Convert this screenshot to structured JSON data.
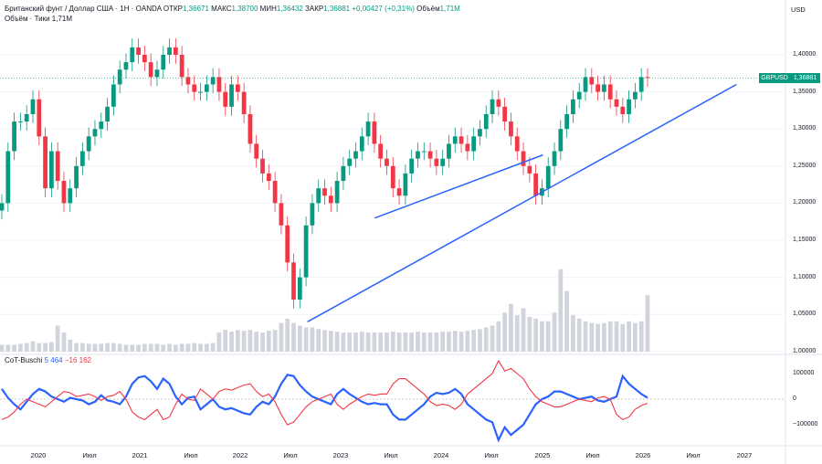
{
  "header": {
    "symbol_line": "Британский фунт / Доллар США · 1Н · OANDA",
    "open_label": "ОТКР",
    "open_value": "1,36671",
    "high_label": "МАКС",
    "high_value": "1,38700",
    "low_label": "МИН",
    "low_value": "1,36432",
    "close_label": "ЗАКР",
    "close_value": "1,36881",
    "change": "+0,00427 (+0,31%)",
    "volume_label": "Объём",
    "volume_value": "1,71M",
    "volume_line": "Объём · Тики  1,71M"
  },
  "axis": {
    "currency": "USD",
    "price_tag_symbol": "GBPUSD",
    "price_tag_value": "1,36881"
  },
  "chart_data": [
    {
      "type": "candlestick",
      "title": "GBPUSD",
      "ylim": [
        1.0,
        1.43
      ],
      "y_ticks": [
        "1,40000",
        "1,35000",
        "1,30000",
        "1,25000",
        "1,20000",
        "1,15000",
        "1,10000",
        "1,05000",
        "1,00000"
      ],
      "x_ticks": [
        "2020",
        "Июл",
        "2021",
        "Июл",
        "2022",
        "Июл",
        "2023",
        "Июл",
        "2024",
        "Июл",
        "2025",
        "Июл",
        "2026",
        "Июл",
        "2027"
      ],
      "closes": [
        1.2,
        1.27,
        1.31,
        1.31,
        1.32,
        1.34,
        1.29,
        1.22,
        1.27,
        1.23,
        1.2,
        1.22,
        1.25,
        1.27,
        1.29,
        1.3,
        1.31,
        1.33,
        1.36,
        1.38,
        1.39,
        1.41,
        1.4,
        1.39,
        1.37,
        1.38,
        1.4,
        1.41,
        1.4,
        1.37,
        1.36,
        1.35,
        1.35,
        1.36,
        1.37,
        1.35,
        1.33,
        1.36,
        1.35,
        1.32,
        1.28,
        1.26,
        1.24,
        1.23,
        1.2,
        1.17,
        1.12,
        1.07,
        1.1,
        1.17,
        1.2,
        1.22,
        1.21,
        1.2,
        1.23,
        1.25,
        1.26,
        1.27,
        1.29,
        1.31,
        1.28,
        1.26,
        1.25,
        1.22,
        1.21,
        1.24,
        1.26,
        1.27,
        1.27,
        1.26,
        1.25,
        1.26,
        1.28,
        1.29,
        1.28,
        1.27,
        1.29,
        1.3,
        1.32,
        1.34,
        1.33,
        1.31,
        1.29,
        1.27,
        1.25,
        1.24,
        1.21,
        1.22,
        1.25,
        1.27,
        1.3,
        1.32,
        1.34,
        1.35,
        1.37,
        1.36,
        1.35,
        1.36,
        1.34,
        1.33,
        1.32,
        1.34,
        1.35,
        1.37,
        1.3688
      ],
      "volume_ylim": [
        0,
        1.0
      ],
      "volume_relative": [
        0.08,
        0.08,
        0.08,
        0.09,
        0.1,
        0.12,
        0.1,
        0.1,
        0.11,
        0.3,
        0.22,
        0.14,
        0.1,
        0.1,
        0.09,
        0.09,
        0.09,
        0.1,
        0.1,
        0.09,
        0.08,
        0.08,
        0.08,
        0.09,
        0.09,
        0.09,
        0.08,
        0.09,
        0.08,
        0.09,
        0.09,
        0.1,
        0.09,
        0.09,
        0.1,
        0.22,
        0.25,
        0.23,
        0.25,
        0.24,
        0.25,
        0.23,
        0.22,
        0.24,
        0.25,
        0.33,
        0.38,
        0.33,
        0.3,
        0.28,
        0.28,
        0.26,
        0.25,
        0.24,
        0.23,
        0.22,
        0.22,
        0.22,
        0.23,
        0.22,
        0.22,
        0.22,
        0.22,
        0.23,
        0.22,
        0.22,
        0.22,
        0.23,
        0.22,
        0.22,
        0.22,
        0.23,
        0.23,
        0.24,
        0.23,
        0.24,
        0.25,
        0.26,
        0.28,
        0.3,
        0.35,
        0.45,
        0.55,
        0.42,
        0.5,
        0.4,
        0.38,
        0.35,
        0.35,
        0.45,
        0.95,
        0.7,
        0.42,
        0.38,
        0.35,
        0.33,
        0.32,
        0.33,
        0.35,
        0.35,
        0.32,
        0.35,
        0.33,
        0.35,
        0.65
      ],
      "trendlines": [
        {
          "from": [
            "2023-05",
            1.18
          ],
          "to": [
            "2025-01",
            1.265
          ]
        },
        {
          "from": [
            "2022-09",
            1.04
          ],
          "to": [
            "2026-12",
            1.36
          ]
        }
      ]
    },
    {
      "type": "line",
      "title": "CoT-Buschi",
      "values_shown": [
        "5 464",
        "−16 162"
      ],
      "ylim": [
        -180000,
        140000
      ],
      "y_ticks": [
        "100000",
        "0",
        "−100000"
      ],
      "series": [
        {
          "name": "blue",
          "color": "#2962ff",
          "values": [
            40000,
            5000,
            -20000,
            -40000,
            -10000,
            20000,
            40000,
            30000,
            10000,
            0,
            -10000,
            5000,
            0,
            -5000,
            -20000,
            -10000,
            15000,
            -5000,
            -10000,
            -20000,
            10000,
            60000,
            85000,
            90000,
            70000,
            40000,
            80000,
            60000,
            10000,
            -20000,
            5000,
            10000,
            -40000,
            -20000,
            0,
            -30000,
            -40000,
            -35000,
            -45000,
            -55000,
            -60000,
            -30000,
            -10000,
            -20000,
            10000,
            60000,
            95000,
            90000,
            55000,
            30000,
            10000,
            0,
            -10000,
            -20000,
            20000,
            40000,
            20000,
            5000,
            -10000,
            -20000,
            -15000,
            -20000,
            -20000,
            -60000,
            -80000,
            -80000,
            -60000,
            -40000,
            -20000,
            10000,
            25000,
            20000,
            25000,
            40000,
            20000,
            -20000,
            -40000,
            -60000,
            -80000,
            -90000,
            -160000,
            -110000,
            -140000,
            -120000,
            -100000,
            -60000,
            -20000,
            0,
            10000,
            30000,
            30000,
            20000,
            10000,
            0,
            5000,
            10000,
            -5000,
            -10000,
            0,
            10000,
            90000,
            60000,
            40000,
            20000,
            5464
          ]
        },
        {
          "name": "red",
          "color": "#f23645",
          "values": [
            -80000,
            -70000,
            -50000,
            -20000,
            0,
            -10000,
            -20000,
            -30000,
            -10000,
            10000,
            30000,
            25000,
            10000,
            15000,
            20000,
            10000,
            -5000,
            10000,
            15000,
            30000,
            0,
            -50000,
            -70000,
            -80000,
            -60000,
            -40000,
            -80000,
            -70000,
            -20000,
            20000,
            0,
            -5000,
            40000,
            20000,
            0,
            30000,
            40000,
            35000,
            45000,
            55000,
            60000,
            30000,
            10000,
            20000,
            -10000,
            -60000,
            -100000,
            -90000,
            -60000,
            -30000,
            -10000,
            0,
            10000,
            20000,
            -20000,
            -40000,
            -20000,
            -5000,
            10000,
            20000,
            15000,
            20000,
            20000,
            60000,
            80000,
            80000,
            60000,
            40000,
            20000,
            -10000,
            -25000,
            -20000,
            -25000,
            -40000,
            -20000,
            20000,
            40000,
            60000,
            80000,
            100000,
            150000,
            110000,
            120000,
            100000,
            80000,
            40000,
            10000,
            -10000,
            -20000,
            -30000,
            -30000,
            -20000,
            -10000,
            0,
            -5000,
            -10000,
            5000,
            10000,
            0,
            -60000,
            -80000,
            -70000,
            -40000,
            -25000,
            -16162
          ]
        }
      ]
    }
  ]
}
